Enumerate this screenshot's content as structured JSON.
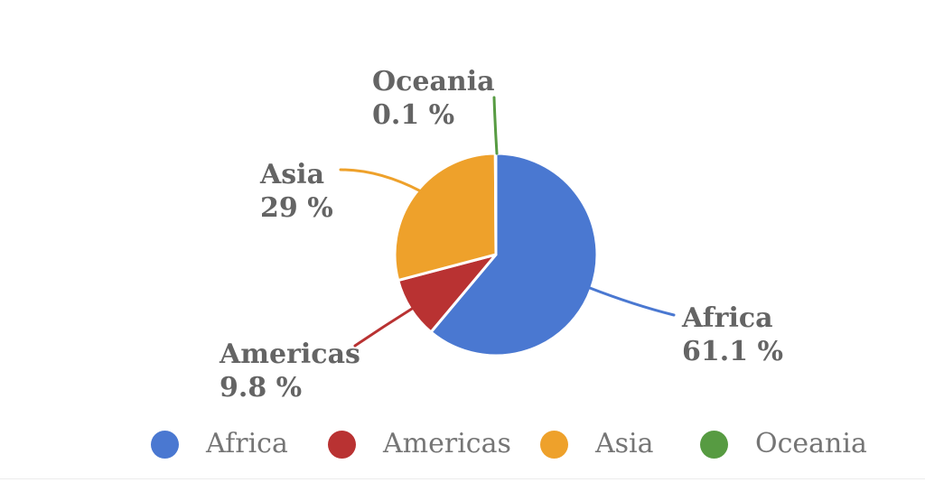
{
  "chart_data": {
    "type": "pie",
    "categories": [
      "Africa",
      "Americas",
      "Asia",
      "Oceania"
    ],
    "values": [
      61.1,
      9.8,
      29,
      0.1
    ],
    "unit": "%",
    "slice_colors": [
      "#4A78D1",
      "#B93232",
      "#EEA12B",
      "#579B42"
    ],
    "start_angle_deg": 0,
    "direction": "clockwise",
    "legend_position": "bottom",
    "grid": false,
    "callouts": [
      {
        "name": "Africa",
        "value_label": "61.1 %"
      },
      {
        "name": "Americas",
        "value_label": "9.8 %"
      },
      {
        "name": "Asia",
        "value_label": "29 %"
      },
      {
        "name": "Oceania",
        "value_label": "0.1 %"
      }
    ]
  },
  "legend": {
    "items": [
      {
        "label": "Africa",
        "color": "#4A78D1"
      },
      {
        "label": "Americas",
        "color": "#B93232"
      },
      {
        "label": "Asia",
        "color": "#EEA12B"
      },
      {
        "label": "Oceania",
        "color": "#579B42"
      }
    ]
  },
  "colors": {
    "background": "#ffffff",
    "callout_text": "#646464",
    "legend_text": "#757575"
  }
}
